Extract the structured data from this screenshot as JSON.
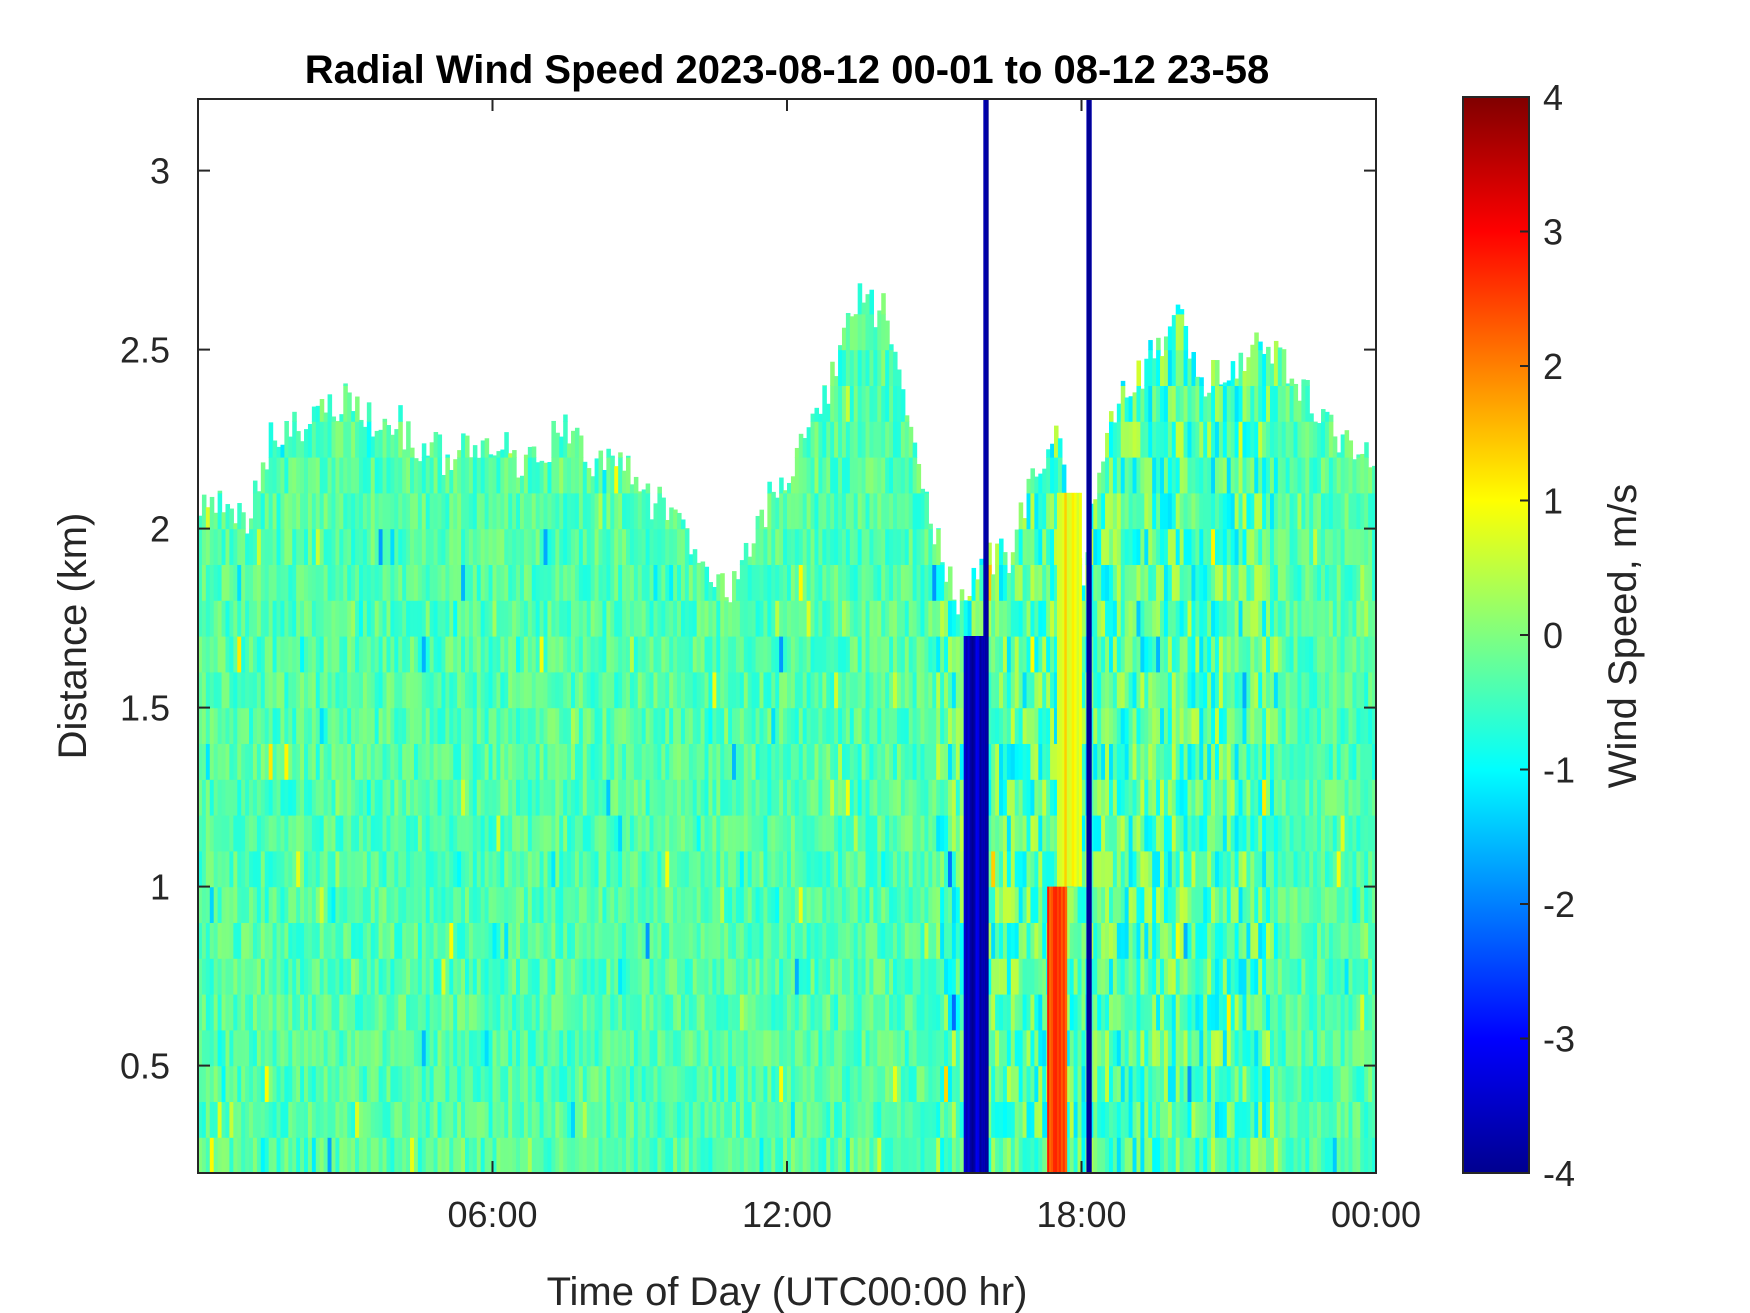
{
  "chart_data": {
    "type": "heatmap",
    "title": "Radial Wind Speed 2023-08-12 00-01 to 08-12 23-58",
    "xlabel": "Time of Day (UTC00:00 hr)",
    "ylabel": "Distance (km)",
    "x_range_hours": [
      0,
      24
    ],
    "xlim": [
      "2023-08-12 00:00",
      "2023-08-13 00:00"
    ],
    "ylim": [
      0.2,
      3.2
    ],
    "x_ticks": [
      {
        "hour": 6,
        "label": "06:00"
      },
      {
        "hour": 12,
        "label": "12:00"
      },
      {
        "hour": 18,
        "label": "18:00"
      },
      {
        "hour": 24,
        "label": "00:00"
      }
    ],
    "y_ticks": [
      {
        "value": 0.5,
        "label": "0.5"
      },
      {
        "value": 1,
        "label": "1"
      },
      {
        "value": 1.5,
        "label": "1.5"
      },
      {
        "value": 2,
        "label": "2"
      },
      {
        "value": 2.5,
        "label": "2.5"
      },
      {
        "value": 3,
        "label": "3"
      }
    ],
    "colorbar": {
      "label": "Wind Speed, m/s",
      "range": [
        -4,
        4
      ],
      "colormap": "jet",
      "ticks": [
        {
          "value": 4,
          "label": "4"
        },
        {
          "value": 3,
          "label": "3"
        },
        {
          "value": 2,
          "label": "2"
        },
        {
          "value": 1,
          "label": "1"
        },
        {
          "value": 0,
          "label": "0"
        },
        {
          "value": -1,
          "label": "-1"
        },
        {
          "value": -2,
          "label": "-2"
        },
        {
          "value": -3,
          "label": "-3"
        },
        {
          "value": -4,
          "label": "-4"
        }
      ]
    },
    "top_boundary": {
      "hours": [
        0,
        0.5,
        1,
        1.5,
        2,
        2.5,
        3,
        3.5,
        4,
        4.5,
        5,
        5.5,
        6,
        6.5,
        7,
        7.5,
        8,
        8.5,
        9,
        9.5,
        10,
        10.5,
        11,
        11.5,
        12,
        12.5,
        13,
        13.5,
        14,
        14.5,
        15,
        15.5,
        16,
        16.5,
        17,
        17.5,
        18,
        18.5,
        19,
        19.5,
        20,
        20.5,
        21,
        21.5,
        22,
        22.5,
        23,
        23.5,
        24
      ],
      "km": [
        2.1,
        2.05,
        2.0,
        2.25,
        2.3,
        2.3,
        2.35,
        2.3,
        2.3,
        2.25,
        2.2,
        2.25,
        2.25,
        2.2,
        2.2,
        2.3,
        2.15,
        2.2,
        2.1,
        2.05,
        1.95,
        1.85,
        1.85,
        2.05,
        2.15,
        2.3,
        2.45,
        2.65,
        2.6,
        2.3,
        2.0,
        1.8,
        1.95,
        1.9,
        2.15,
        2.3,
        1.85,
        2.3,
        2.4,
        2.5,
        2.6,
        2.4,
        2.45,
        2.5,
        2.5,
        2.4,
        2.3,
        2.2,
        2.2
      ]
    },
    "features": [
      {
        "hour_start": 15.6,
        "hour_end": 16.0,
        "km_bottom": 0.2,
        "km_top": 1.7,
        "speed": -3.5
      },
      {
        "hour_start": 16.0,
        "hour_end": 16.1,
        "km_bottom": 0.2,
        "km_top": 3.2,
        "speed": -3.8
      },
      {
        "hour_start": 17.3,
        "hour_end": 17.7,
        "km_bottom": 0.2,
        "km_top": 1.0,
        "speed": 2.5
      },
      {
        "hour_start": 17.5,
        "hour_end": 18.0,
        "km_bottom": 1.0,
        "km_top": 2.1,
        "speed": 1.0
      },
      {
        "hour_start": 18.1,
        "hour_end": 18.2,
        "km_bottom": 0.2,
        "km_top": 3.2,
        "speed": -3.8
      }
    ]
  }
}
